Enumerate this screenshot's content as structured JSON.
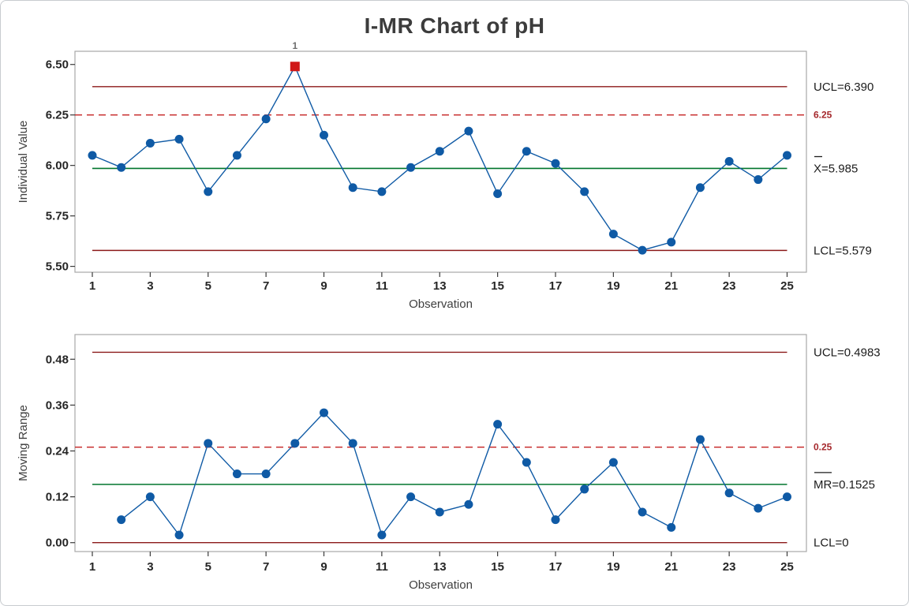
{
  "title": "I-MR Chart of pH",
  "colors": {
    "series_blue": "#0F5AA5",
    "limit_dark_red": "#8B1A1A",
    "center_green": "#00752D",
    "reference_red": "#C52222",
    "reference_label_red": "#A5282C",
    "ooc_red": "#D01818",
    "frame_gray": "#A8A8A8",
    "tick_mark": "#3A3A3A",
    "overbar": "#1C1C1C"
  },
  "chart_data": [
    {
      "type": "line",
      "name": "individuals",
      "title": "",
      "xlabel": "Observation",
      "ylabel": "Individual Value",
      "x": [
        1,
        2,
        3,
        4,
        5,
        6,
        7,
        8,
        9,
        10,
        11,
        12,
        13,
        14,
        15,
        16,
        17,
        18,
        19,
        20,
        21,
        22,
        23,
        24,
        25
      ],
      "values": [
        6.05,
        5.99,
        6.11,
        6.13,
        5.87,
        6.05,
        6.23,
        6.49,
        6.15,
        5.89,
        5.87,
        5.99,
        6.07,
        6.17,
        5.86,
        6.07,
        6.01,
        5.87,
        5.66,
        5.58,
        5.62,
        5.89,
        6.02,
        5.93,
        6.05
      ],
      "center_line": 5.985,
      "ucl": 6.39,
      "lcl": 5.579,
      "reference_line": 6.25,
      "ylim": [
        5.471,
        6.5653
      ],
      "ytick_values": [
        6.5,
        6.25,
        6.0,
        5.75,
        5.5
      ],
      "ytick_labels": [
        "6.50",
        "6.25",
        "6.00",
        "5.75",
        "5.50"
      ],
      "xtick_values": [
        1,
        3,
        5,
        7,
        9,
        11,
        13,
        15,
        17,
        19,
        21,
        23,
        25
      ],
      "right_labels": {
        "ucl": "UCL=6.390",
        "center": "X=5.985",
        "lcl": "LCL=5.579",
        "reference": "6.25"
      },
      "center_bar_chars": 1,
      "out_of_control": [
        {
          "observation": 8,
          "flag": "1"
        }
      ],
      "legend": "none",
      "grid": false
    },
    {
      "type": "line",
      "name": "moving-range",
      "title": "",
      "xlabel": "Observation",
      "ylabel": "Moving Range",
      "x": [
        1,
        2,
        3,
        4,
        5,
        6,
        7,
        8,
        9,
        10,
        11,
        12,
        13,
        14,
        15,
        16,
        17,
        18,
        19,
        20,
        21,
        22,
        23,
        24,
        25
      ],
      "values": [
        null,
        0.06,
        0.12,
        0.02,
        0.26,
        0.18,
        0.18,
        0.26,
        0.34,
        0.26,
        0.02,
        0.12,
        0.08,
        0.1,
        0.31,
        0.21,
        0.06,
        0.14,
        0.21,
        0.08,
        0.04,
        0.27,
        0.13,
        0.09,
        0.12
      ],
      "center_line": 0.1525,
      "ucl": 0.4983,
      "lcl": 0,
      "reference_line": 0.25,
      "ylim": [
        -0.0233,
        0.5446
      ],
      "ytick_values": [
        0.48,
        0.36,
        0.24,
        0.12,
        0.0
      ],
      "ytick_labels": [
        "0.48",
        "0.36",
        "0.24",
        "0.12",
        "0.00"
      ],
      "xtick_values": [
        1,
        3,
        5,
        7,
        9,
        11,
        13,
        15,
        17,
        19,
        21,
        23,
        25
      ],
      "right_labels": {
        "ucl": "UCL=0.4983",
        "center": "MR=0.1525",
        "lcl": "LCL=0",
        "reference": "0.25"
      },
      "center_bar_chars": 2,
      "out_of_control": [],
      "legend": "none",
      "grid": false
    }
  ]
}
